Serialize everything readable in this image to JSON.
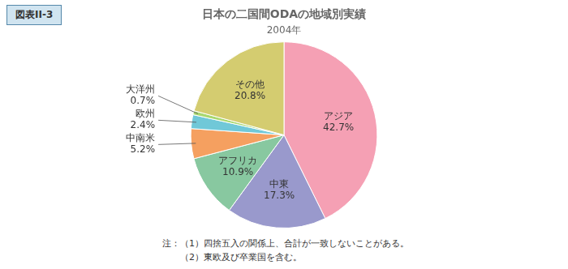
{
  "chart_data": {
    "type": "pie",
    "title": "日本の二国間ODAの地域別実績",
    "subtitle": "2004年",
    "categories": [
      "アジア",
      "中東",
      "アフリカ",
      "中南米",
      "欧州",
      "大洋州",
      "その他"
    ],
    "values": [
      42.7,
      17.3,
      10.9,
      5.2,
      2.4,
      0.7,
      20.8
    ],
    "value_labels": [
      "42.7%",
      "17.3%",
      "10.9%",
      "5.2%",
      "2.4%",
      "0.7%",
      "20.8%"
    ],
    "colors": [
      "#F5A0B4",
      "#9999CC",
      "#88C8A0",
      "#F5A060",
      "#70C8D8",
      "#A8D870",
      "#D4CC70"
    ],
    "data_labels": true,
    "annotations": [
      "図表II-3",
      "注：（1）四捨五入の関係上、合計が一致しないことがある。",
      "　　（2）東欧及び卒業国を含む。"
    ]
  }
}
